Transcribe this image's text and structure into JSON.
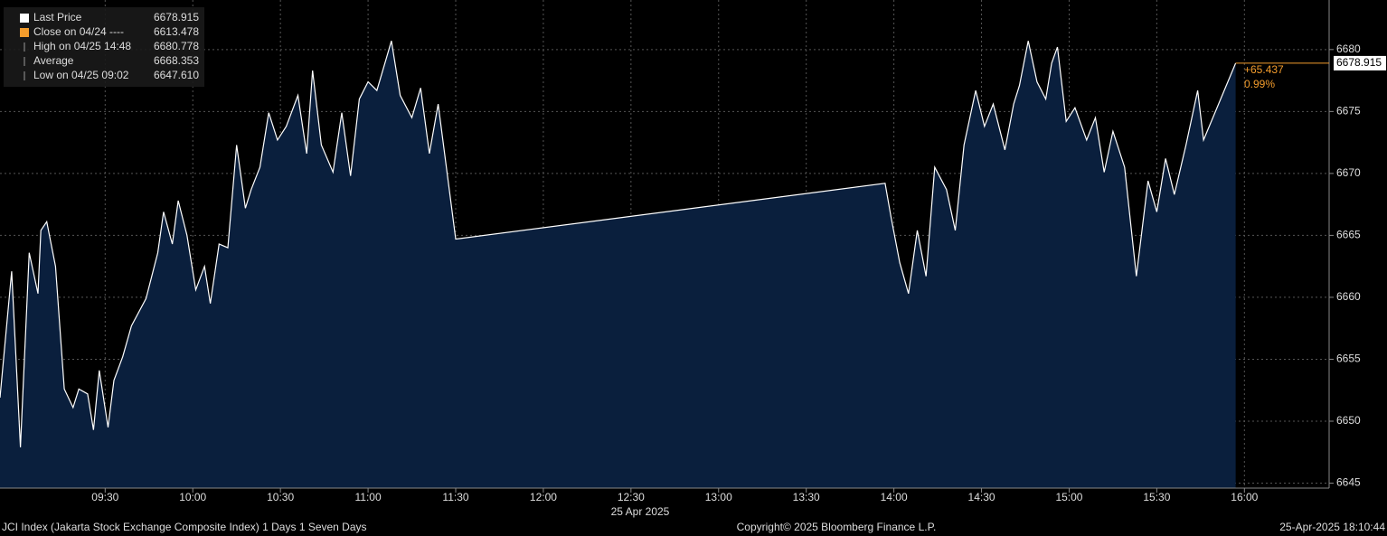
{
  "chart_data": {
    "type": "area",
    "x": [
      534,
      538,
      541,
      544,
      547,
      548,
      550,
      553,
      556,
      559,
      561,
      564,
      566,
      568,
      571,
      573,
      576,
      579,
      584,
      588,
      590,
      593,
      595,
      598,
      601,
      604,
      606,
      609,
      612,
      615,
      618,
      620,
      623,
      626,
      629,
      632,
      636,
      639,
      641,
      644,
      648,
      651,
      654,
      657,
      660,
      663,
      666,
      668,
      671,
      675,
      678,
      681,
      684,
      690,
      837,
      839,
      842,
      845,
      848,
      851,
      854,
      858,
      861,
      864,
      868,
      871,
      874,
      878,
      881,
      883,
      886,
      889,
      892,
      894,
      896,
      899,
      902,
      906,
      909,
      912,
      915,
      919,
      923,
      927,
      930,
      933,
      936,
      940,
      944,
      946,
      957
    ],
    "series": [
      {
        "name": "Last Price",
        "color": "#ffffff",
        "fill": "#0a1f3d",
        "values": [
          6651.9,
          6662.1,
          6647.9,
          6663.6,
          6660.3,
          6665.4,
          6666.1,
          6662.5,
          6652.6,
          6651.1,
          6652.6,
          6652.2,
          6649.3,
          6654.1,
          6649.5,
          6653.3,
          6655.2,
          6657.7,
          6659.9,
          6663.6,
          6666.9,
          6664.3,
          6667.8,
          6665.0,
          6660.6,
          6662.5,
          6659.5,
          6664.3,
          6664.0,
          6672.3,
          6667.2,
          6668.7,
          6670.5,
          6674.9,
          6672.7,
          6673.8,
          6676.3,
          6671.6,
          6678.3,
          6672.3,
          6670.1,
          6674.9,
          6669.8,
          6676.0,
          6677.4,
          6676.7,
          6679.1,
          6680.7,
          6676.3,
          6674.5,
          6676.9,
          6671.6,
          6675.6,
          6664.7,
          6669.2,
          6666.5,
          6662.8,
          6660.3,
          6665.4,
          6661.7,
          6670.5,
          6668.7,
          6665.4,
          6672.3,
          6676.7,
          6673.8,
          6675.6,
          6671.9,
          6675.6,
          6677.1,
          6680.7,
          6677.4,
          6676.0,
          6678.9,
          6680.2,
          6674.2,
          6675.3,
          6672.7,
          6674.5,
          6670.1,
          6673.4,
          6670.5,
          6661.7,
          6669.4,
          6666.9,
          6671.2,
          6668.3,
          6672.3,
          6676.7,
          6672.7,
          6678.9
        ]
      }
    ],
    "xlim": [
      534,
      989
    ],
    "ylim": [
      6644.6,
      6684.0
    ],
    "xticks": [
      {
        "value": 570,
        "label": "09:30"
      },
      {
        "value": 600,
        "label": "10:00"
      },
      {
        "value": 630,
        "label": "10:30"
      },
      {
        "value": 660,
        "label": "11:00"
      },
      {
        "value": 690,
        "label": "11:30"
      },
      {
        "value": 720,
        "label": "12:00"
      },
      {
        "value": 750,
        "label": "12:30"
      },
      {
        "value": 780,
        "label": "13:00"
      },
      {
        "value": 810,
        "label": "13:30"
      },
      {
        "value": 840,
        "label": "14:00"
      },
      {
        "value": 870,
        "label": "14:30"
      },
      {
        "value": 900,
        "label": "15:00"
      },
      {
        "value": 930,
        "label": "15:30"
      },
      {
        "value": 960,
        "label": "16:00"
      }
    ],
    "yticks": [
      6645,
      6650,
      6655,
      6660,
      6665,
      6670,
      6675,
      6680
    ],
    "grid": true,
    "x_label": "25 Apr 2025",
    "legend": [
      {
        "name": "Last Price",
        "value": "6678.915",
        "color": "#ffffff"
      },
      {
        "name": "Close on 04/24 ----",
        "value": "6613.478",
        "color": "#f39c2c"
      },
      {
        "name": "High on 04/25 14:48",
        "value": "6680.778",
        "color": "#999999"
      },
      {
        "name": "Average",
        "value": "6668.353",
        "color": "#999999"
      },
      {
        "name": "Low on 04/25 09:02",
        "value": "6647.610",
        "color": "#999999"
      }
    ],
    "last_label": "6678.915",
    "change": "+65.437",
    "change_pct": "0.99%",
    "footer": {
      "left": "JCI Index (Jakarta Stock Exchange Composite Index) 1 Days 1 Seven Days",
      "center": "Copyright© 2025 Bloomberg Finance L.P.",
      "right": "25-Apr-2025 18:10:44"
    }
  }
}
